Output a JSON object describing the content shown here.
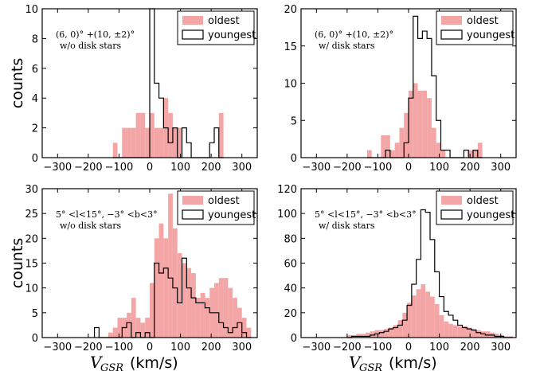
{
  "colors": {
    "oldest": "#f4a6a6",
    "youngest_edge": "#000000",
    "axis": "#000000"
  },
  "chart_data": [
    {
      "type": "histogram",
      "annotation": [
        "(6, 0)° +(10, ±2)°",
        "w/o disk stars"
      ],
      "ylabel": "counts",
      "xlabel": "",
      "xlim": [
        -350,
        350
      ],
      "ylim": [
        0,
        10
      ],
      "xticks": [
        -300,
        -200,
        -100,
        0,
        100,
        200,
        300
      ],
      "yticks": [
        0,
        2,
        4,
        6,
        8,
        10
      ],
      "bin_edges": [
        -120,
        -105,
        -90,
        -75,
        -60,
        -45,
        -30,
        -15,
        0,
        15,
        30,
        45,
        60,
        75,
        90,
        105,
        120,
        135,
        150,
        165,
        180,
        195,
        210,
        225,
        240
      ],
      "series": [
        {
          "name": "oldest",
          "style": "filled",
          "counts": [
            1,
            0,
            2,
            2,
            2,
            3,
            3,
            2,
            3,
            2,
            2,
            4,
            3,
            2,
            2,
            0,
            0,
            0,
            0,
            0,
            0,
            0,
            0,
            3
          ]
        },
        {
          "name": "youngest",
          "style": "step",
          "counts": [
            0,
            0,
            0,
            0,
            0,
            0,
            0,
            0,
            10,
            5,
            4,
            2,
            1,
            2,
            0,
            2,
            1,
            0,
            0,
            0,
            0,
            1,
            2,
            0
          ]
        }
      ]
    },
    {
      "type": "histogram",
      "annotation": [
        "(6, 0)° +(10, ±2)°",
        "w/ disk stars"
      ],
      "ylabel": "",
      "xlabel": "",
      "xlim": [
        -350,
        350
      ],
      "ylim": [
        0,
        20
      ],
      "xticks": [
        -300,
        -200,
        -100,
        0,
        100,
        200,
        300
      ],
      "yticks": [
        0,
        5,
        10,
        15,
        20
      ],
      "bin_edges": [
        -135,
        -120,
        -105,
        -90,
        -75,
        -60,
        -45,
        -30,
        -15,
        0,
        15,
        30,
        45,
        60,
        75,
        90,
        105,
        120,
        135,
        150,
        165,
        180,
        195,
        210,
        225,
        240
      ],
      "series": [
        {
          "name": "oldest",
          "style": "filled",
          "counts": [
            1,
            0,
            0,
            3,
            3,
            1,
            2,
            4,
            6,
            9,
            10,
            9,
            9,
            8,
            4,
            2,
            1,
            0,
            0,
            0,
            0,
            0,
            1,
            1,
            2
          ]
        },
        {
          "name": "youngest",
          "style": "step",
          "counts": [
            0,
            0,
            0,
            0,
            1,
            0,
            0,
            0,
            2,
            8,
            19,
            16,
            17,
            16,
            11,
            5,
            1,
            1,
            0,
            0,
            0,
            1,
            0,
            1,
            0
          ]
        }
      ]
    },
    {
      "type": "histogram",
      "annotation": [
        "5° <l<15°, −3° <b<3°",
        "w/o disk stars"
      ],
      "ylabel": "counts",
      "xlabel": "V_GSR (km/s)",
      "xlim": [
        -350,
        350
      ],
      "ylim": [
        0,
        30
      ],
      "xticks": [
        -300,
        -200,
        -100,
        0,
        100,
        200,
        300
      ],
      "yticks": [
        0,
        5,
        10,
        15,
        20,
        25,
        30
      ],
      "bin_edges": [
        -180,
        -165,
        -150,
        -135,
        -120,
        -105,
        -90,
        -75,
        -60,
        -45,
        -30,
        -15,
        0,
        15,
        30,
        45,
        60,
        75,
        90,
        105,
        120,
        135,
        150,
        165,
        180,
        195,
        210,
        225,
        240,
        255,
        270,
        285,
        300,
        315,
        330
      ],
      "series": [
        {
          "name": "oldest",
          "style": "filled",
          "counts": [
            0,
            0,
            0,
            1,
            2,
            4,
            4,
            5,
            8,
            4,
            3,
            4,
            11,
            20,
            23,
            20,
            29,
            22,
            17,
            15,
            14,
            13,
            8,
            9,
            8,
            10,
            11,
            12,
            12,
            10,
            8,
            6,
            4,
            2
          ],
          "labels_above_zero": true
        },
        {
          "name": "youngest",
          "style": "step",
          "counts": [
            2,
            0,
            0,
            0,
            0,
            0,
            2,
            3,
            0,
            1,
            0,
            1,
            0,
            15,
            13,
            14,
            12,
            10,
            7,
            16,
            10,
            8,
            7,
            7,
            6,
            5,
            5,
            3,
            2,
            1,
            2,
            3,
            1,
            0
          ]
        }
      ]
    },
    {
      "type": "histogram",
      "annotation": [
        "5° <l<15°, −3° <b<3°",
        "w/ disk stars"
      ],
      "ylabel": "",
      "xlabel": "V_GSR (km/s)",
      "xlim": [
        -350,
        350
      ],
      "ylim": [
        0,
        120
      ],
      "xticks": [
        -300,
        -200,
        -100,
        0,
        100,
        200,
        300
      ],
      "yticks": [
        0,
        20,
        40,
        60,
        80,
        100,
        120
      ],
      "bin_edges": [
        -200,
        -185,
        -170,
        -155,
        -140,
        -125,
        -110,
        -95,
        -80,
        -65,
        -50,
        -35,
        -20,
        -5,
        10,
        25,
        40,
        55,
        70,
        85,
        100,
        115,
        130,
        145,
        160,
        175,
        190,
        205,
        220,
        235,
        250,
        265,
        280,
        295,
        310,
        325,
        340
      ],
      "series": [
        {
          "name": "oldest",
          "style": "filled",
          "counts": [
            2,
            2,
            3,
            3,
            4,
            5,
            6,
            6,
            7,
            8,
            10,
            14,
            20,
            28,
            34,
            39,
            43,
            37,
            33,
            27,
            18,
            13,
            11,
            10,
            9,
            9,
            8,
            7,
            6,
            5,
            5,
            4,
            3,
            2,
            1,
            1
          ]
        },
        {
          "name": "youngest",
          "style": "step",
          "counts": [
            0,
            1,
            1,
            1,
            1,
            2,
            3,
            4,
            5,
            7,
            8,
            10,
            14,
            26,
            43,
            63,
            103,
            101,
            79,
            53,
            33,
            21,
            18,
            14,
            10,
            8,
            7,
            6,
            4,
            3,
            2,
            2,
            1,
            1,
            0,
            0
          ]
        }
      ]
    }
  ],
  "legend": {
    "items": [
      "oldest",
      "youngest"
    ]
  }
}
